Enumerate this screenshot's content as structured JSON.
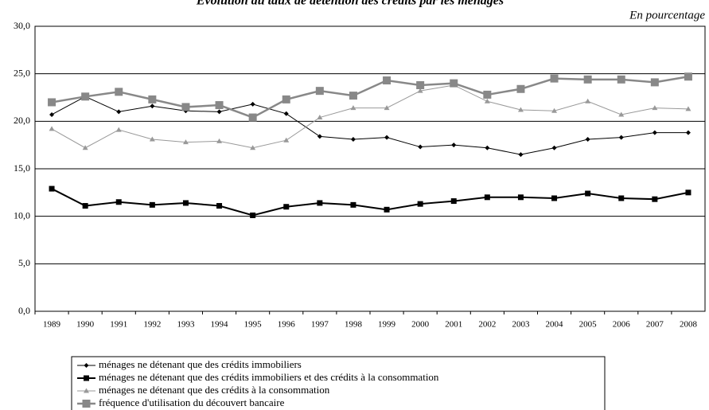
{
  "chart_data": {
    "type": "line",
    "title": "Évolution du taux de détention des crédits par les ménages",
    "subtitle": "En pourcentage",
    "categories": [
      "1989",
      "1990",
      "1991",
      "1992",
      "1993",
      "1994",
      "1995",
      "1996",
      "1997",
      "1998",
      "1999",
      "2000",
      "2001",
      "2002",
      "2003",
      "2004",
      "2005",
      "2006",
      "2007",
      "2008"
    ],
    "series": [
      {
        "name": "ménages ne détenant que des crédits immobiliers",
        "color": "#000000",
        "marker": "diamond",
        "width": 1,
        "values": [
          20.7,
          22.6,
          21.0,
          21.6,
          21.1,
          21.0,
          21.8,
          20.8,
          18.4,
          18.1,
          18.3,
          17.3,
          17.5,
          17.2,
          16.5,
          17.2,
          18.1,
          18.3,
          18.8,
          18.8
        ]
      },
      {
        "name": "ménages ne détenant que des crédits immobiliers et des crédits à la consommation",
        "color": "#000000",
        "marker": "square",
        "width": 2,
        "values": [
          12.9,
          11.1,
          11.5,
          11.2,
          11.4,
          11.1,
          10.1,
          11.0,
          11.4,
          11.2,
          10.7,
          11.3,
          11.6,
          12.0,
          12.0,
          11.9,
          12.4,
          11.9,
          11.8,
          12.5
        ]
      },
      {
        "name": "ménages ne détenant que des crédits à la consommation",
        "color": "#999999",
        "marker": "triangle",
        "width": 1,
        "values": [
          19.2,
          17.2,
          19.1,
          18.1,
          17.8,
          17.9,
          17.2,
          18.0,
          20.4,
          21.4,
          21.4,
          23.2,
          23.8,
          22.1,
          21.2,
          21.1,
          22.1,
          20.7,
          21.4,
          21.3
        ]
      },
      {
        "name": "fréquence d'utilisation du découvert bancaire",
        "color": "#888888",
        "marker": "bigsquare",
        "width": 2.5,
        "values": [
          22.0,
          22.6,
          23.1,
          22.3,
          21.5,
          21.7,
          20.4,
          22.3,
          23.2,
          22.7,
          24.3,
          23.8,
          24.0,
          22.8,
          23.4,
          24.5,
          24.4,
          24.4,
          24.1,
          24.7
        ]
      }
    ],
    "ylim": [
      0,
      30
    ],
    "yticks": [
      {
        "value": 0,
        "label": "0,0"
      },
      {
        "value": 5,
        "label": "5,0"
      },
      {
        "value": 10,
        "label": "10,0"
      },
      {
        "value": 15,
        "label": "15,0"
      },
      {
        "value": 20,
        "label": "20,0"
      },
      {
        "value": 25,
        "label": "25,0"
      },
      {
        "value": 30,
        "label": "30,0"
      }
    ],
    "grid": true
  }
}
